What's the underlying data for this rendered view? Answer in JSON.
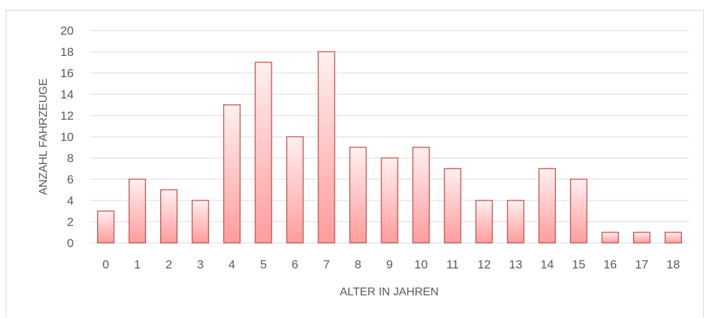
{
  "chart_data": {
    "type": "bar",
    "categories": [
      "0",
      "1",
      "2",
      "3",
      "4",
      "5",
      "6",
      "7",
      "8",
      "9",
      "10",
      "11",
      "12",
      "13",
      "14",
      "15",
      "16",
      "17",
      "18"
    ],
    "values": [
      3,
      6,
      5,
      4,
      13,
      17,
      10,
      18,
      9,
      8,
      9,
      7,
      4,
      4,
      7,
      6,
      1,
      1,
      1
    ],
    "xlabel": "ALTER IN JAHREN",
    "ylabel": "ANZAHL FAHRZEUGE",
    "ylim": [
      0,
      20
    ],
    "yticks": [
      0,
      2,
      4,
      6,
      8,
      10,
      12,
      14,
      16,
      18,
      20
    ],
    "grid": true,
    "legend": "none",
    "colors": {
      "bar_top": "#fff0f0",
      "bar_bottom": "#ff9c9c",
      "bar_stroke": "#c0504d",
      "grid": "#d9d9d9",
      "text": "#595959"
    }
  }
}
